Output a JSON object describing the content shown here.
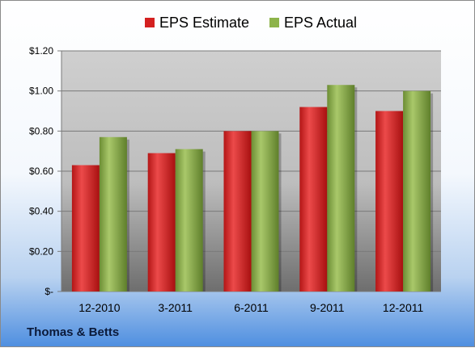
{
  "chart_data": {
    "type": "bar",
    "categories": [
      "12-2010",
      "3-2011",
      "6-2011",
      "9-2011",
      "12-2011"
    ],
    "series": [
      {
        "name": "EPS Estimate",
        "values": [
          0.63,
          0.69,
          0.8,
          0.92,
          0.9
        ],
        "color": "#d42020"
      },
      {
        "name": "EPS Actual",
        "values": [
          0.77,
          0.71,
          0.8,
          1.03,
          1.0
        ],
        "color": "#8db34a"
      }
    ],
    "yticks": [
      "$-",
      "$0.20",
      "$0.40",
      "$0.60",
      "$0.80",
      "$1.00",
      "$1.20"
    ],
    "ylim": [
      0,
      1.2
    ],
    "grid": true,
    "legend_position": "top"
  },
  "footer": {
    "company": "Thomas & Betts"
  }
}
